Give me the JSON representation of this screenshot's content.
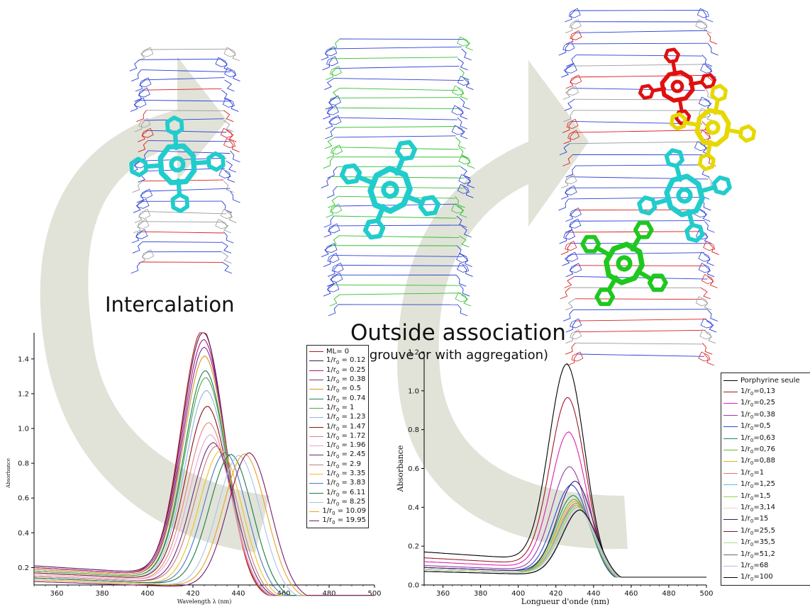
{
  "labels": {
    "intercalation": "Intercalation",
    "outside": "Outside association",
    "outside_sub": "(e grouve or with aggregation)"
  },
  "colors": {
    "arrow": "#c9ccb8",
    "dna_blue": "#2a3fd6",
    "dna_green": "#2fbf2f",
    "dna_red": "#d81e1e",
    "dna_grey": "#9a9a9a",
    "porph_cyan": "#22cccc",
    "porph_red": "#e01010",
    "porph_yellow": "#e6d800",
    "porph_green": "#1ec81e"
  },
  "chart_data": [
    {
      "type": "line",
      "xlabel": "Wavelength λ (nm)",
      "ylabel": "Absorbance",
      "xlim": [
        350,
        500
      ],
      "ylim": [
        0.1,
        1.55
      ],
      "xticks": [
        360,
        380,
        400,
        420,
        440,
        460,
        480,
        500
      ],
      "yticks": [
        0.2,
        0.4,
        0.6,
        0.8,
        1.0,
        1.2,
        1.4
      ],
      "isosbestic": [
        439,
        0.8
      ],
      "series": [
        {
          "name": "ML= 0",
          "prefix": "ML= 0",
          "value": "",
          "color": "#c0131b",
          "peak": 1.49,
          "center": 424.5,
          "base": 0.2
        },
        {
          "name": "1/r0 = 0.12",
          "prefix": "1/r",
          "value": " = 0.12",
          "color": "#4a1a5a",
          "peak": 1.47,
          "center": 424.8,
          "base": 0.21
        },
        {
          "name": "1/r0 = 0.25",
          "prefix": "1/r",
          "value": " = 0.25",
          "color": "#b0177a",
          "peak": 1.43,
          "center": 425.0,
          "base": 0.2
        },
        {
          "name": "1/r0 = 0.38",
          "prefix": "1/r",
          "value": " = 0.38",
          "color": "#7a2d9a",
          "peak": 1.39,
          "center": 425.2,
          "base": 0.19
        },
        {
          "name": "1/r0 = 0.5",
          "prefix": "1/r",
          "value": " = 0.5",
          "color": "#d49a1a",
          "peak": 1.34,
          "center": 425.4,
          "base": 0.19
        },
        {
          "name": "1/r0 = 0.74",
          "prefix": "1/r",
          "value": " = 0.74",
          "color": "#1f7a5a",
          "peak": 1.26,
          "center": 425.7,
          "base": 0.18
        },
        {
          "name": "1/r0 = 1",
          "prefix": "1/r",
          "value": " = 1",
          "color": "#4aa84a",
          "peak": 1.22,
          "center": 425.9,
          "base": 0.18
        },
        {
          "name": "1/r0 = 1.23",
          "prefix": "1/r",
          "value": " = 1.23",
          "color": "#8fb4e0",
          "peak": 1.15,
          "center": 426.2,
          "base": 0.17
        },
        {
          "name": "1/r0 = 1.47",
          "prefix": "1/r",
          "value": " = 1.47",
          "color": "#8a1010",
          "peak": 1.06,
          "center": 426.6,
          "base": 0.17
        },
        {
          "name": "1/r0 = 1.72",
          "prefix": "1/r",
          "value": " = 1.72",
          "color": "#f08080",
          "peak": 0.97,
          "center": 427.2,
          "base": 0.16
        },
        {
          "name": "1/r0 = 1.96",
          "prefix": "1/r",
          "value": " = 1.96",
          "color": "#e0a8d0",
          "peak": 0.9,
          "center": 428.0,
          "base": 0.16
        },
        {
          "name": "1/r0 = 2.45",
          "prefix": "1/r",
          "value": " = 2.45",
          "color": "#6a2a7a",
          "peak": 0.86,
          "center": 429.2,
          "base": 0.15
        },
        {
          "name": "1/r0 = 2.9",
          "prefix": "1/r",
          "value": " = 2.9",
          "color": "#c97a7a",
          "peak": 0.84,
          "center": 430.5,
          "base": 0.15
        },
        {
          "name": "1/r0 = 3.35",
          "prefix": "1/r",
          "value": " = 3.35",
          "color": "#f0c020",
          "peak": 0.82,
          "center": 432.5,
          "base": 0.14
        },
        {
          "name": "1/r0 = 3.83",
          "prefix": "1/r",
          "value": " = 3.83",
          "color": "#4a78c8",
          "peak": 0.81,
          "center": 434.5,
          "base": 0.14
        },
        {
          "name": "1/r0 = 6.11",
          "prefix": "1/r",
          "value": " = 6.11",
          "color": "#1a7a4a",
          "peak": 0.8,
          "center": 437.0,
          "base": 0.14
        },
        {
          "name": "1/r0 = 8.25",
          "prefix": "1/r",
          "value": " = 8.25",
          "color": "#a6c4ea",
          "peak": 0.8,
          "center": 440.5,
          "base": 0.13
        },
        {
          "name": "1/r0 = 10.09",
          "prefix": "1/r",
          "value": " = 10.09",
          "color": "#e8a020",
          "peak": 0.81,
          "center": 443.0,
          "base": 0.13
        },
        {
          "name": "1/r0 = 19.95",
          "prefix": "1/r",
          "value": " = 19.95",
          "color": "#7a1a6a",
          "peak": 0.82,
          "center": 445.0,
          "base": 0.12
        }
      ]
    },
    {
      "type": "line",
      "xlabel": "Longueur d'onde (nm)",
      "ylabel": "Absorbance",
      "xlim": [
        350,
        500
      ],
      "ylim": [
        0.0,
        1.2
      ],
      "xticks": [
        360,
        380,
        400,
        420,
        440,
        460,
        480,
        500
      ],
      "yticks": [
        0.0,
        0.2,
        0.4,
        0.6,
        0.8,
        1.0,
        1.2
      ],
      "series": [
        {
          "name": "Porphyrine seule",
          "prefix": "Porphyrine seule",
          "value": "",
          "color": "#000000",
          "peak": 1.07,
          "center": 426.0,
          "base": 0.17
        },
        {
          "name": "1/r0=0,13",
          "prefix": "1/r",
          "value": "=0,13",
          "color": "#a0182a",
          "peak": 0.91,
          "center": 426.5,
          "base": 0.14
        },
        {
          "name": "1/r0=0,25",
          "prefix": "1/r",
          "value": "=0,25",
          "color": "#e020b0",
          "peak": 0.74,
          "center": 427.0,
          "base": 0.12
        },
        {
          "name": "1/r0=0,38",
          "prefix": "1/r",
          "value": "=0,38",
          "color": "#9a3aa8",
          "peak": 0.57,
          "center": 427.5,
          "base": 0.1
        },
        {
          "name": "1/r0=0,5",
          "prefix": "1/r",
          "value": "=0,5",
          "color": "#2a4ad0",
          "peak": 0.48,
          "center": 428.5,
          "base": 0.09
        },
        {
          "name": "1/r0=0,63",
          "prefix": "1/r",
          "value": "=0,63",
          "color": "#1a8a6a",
          "peak": 0.43,
          "center": 429.5,
          "base": 0.08
        },
        {
          "name": "1/r0=0,76",
          "prefix": "1/r",
          "value": "=0,76",
          "color": "#6ab82a",
          "peak": 0.41,
          "center": 430.0,
          "base": 0.08
        },
        {
          "name": "1/r0=0,88",
          "prefix": "1/r",
          "value": "=0,88",
          "color": "#e8b020",
          "peak": 0.4,
          "center": 430.5,
          "base": 0.08
        },
        {
          "name": "1/r0=1",
          "prefix": "1/r",
          "value": "=1",
          "color": "#f06a6a",
          "peak": 0.39,
          "center": 431.0,
          "base": 0.08
        },
        {
          "name": "1/r0=1,25",
          "prefix": "1/r",
          "value": "=1,25",
          "color": "#5ac0e8",
          "peak": 0.38,
          "center": 431.0,
          "base": 0.08
        },
        {
          "name": "1/r0=1,5",
          "prefix": "1/r",
          "value": "=1,5",
          "color": "#8ad84a",
          "peak": 0.38,
          "center": 431.5,
          "base": 0.08
        },
        {
          "name": "1/r0=3,14",
          "prefix": "1/r",
          "value": "=3,14",
          "color": "#f0d0c8",
          "peak": 0.37,
          "center": 431.5,
          "base": 0.08
        },
        {
          "name": "1/r0=15",
          "prefix": "1/r",
          "value": "=15",
          "color": "#3a1a6a",
          "peak": 0.5,
          "center": 430.5,
          "base": 0.09
        },
        {
          "name": "1/r0=25,5",
          "prefix": "1/r",
          "value": "=25,5",
          "color": "#6a1a3a",
          "peak": 0.37,
          "center": 432.0,
          "base": 0.08
        },
        {
          "name": "1/r0=35,5",
          "prefix": "1/r",
          "value": "=35,5",
          "color": "#a8e08a",
          "peak": 0.37,
          "center": 432.0,
          "base": 0.08
        },
        {
          "name": "1/r0=51,2",
          "prefix": "1/r",
          "value": "=51,2",
          "color": "#6a6a6a",
          "peak": 0.36,
          "center": 432.5,
          "base": 0.07
        },
        {
          "name": "1/r0=68",
          "prefix": "1/r",
          "value": "=68",
          "color": "#b8b8e8",
          "peak": 0.36,
          "center": 432.5,
          "base": 0.07
        },
        {
          "name": "1/r0=100",
          "prefix": "1/r",
          "value": "=100",
          "color": "#000000",
          "peak": 0.36,
          "center": 433.0,
          "base": 0.07
        }
      ]
    }
  ]
}
